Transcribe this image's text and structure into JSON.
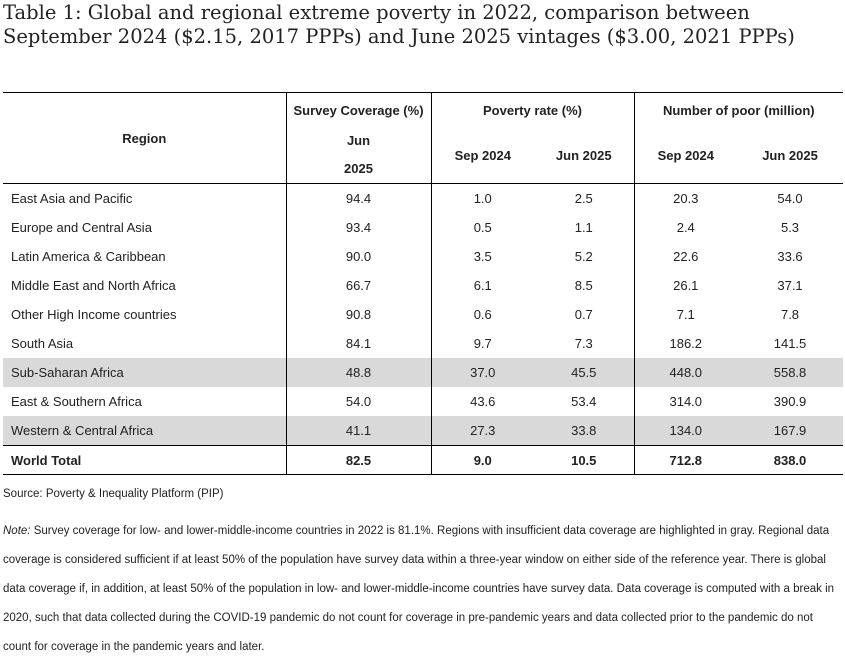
{
  "title": "Table 1: Global and regional extreme poverty in 2022, comparison between September 2024 ($2.15, 2017 PPPs) and June 2025 vintages ($3.00, 2021 PPPs)",
  "header": {
    "region": "Region",
    "survey_coverage": "Survey Coverage (%)",
    "survey_sub_line1": "Jun",
    "survey_sub_line2": "2025",
    "poverty_rate": "Poverty rate (%)",
    "number_of_poor": "Number of poor (million)",
    "sep_2024": "Sep 2024",
    "jun_2025": "Jun 2025"
  },
  "rows": [
    {
      "region": "East Asia and Pacific",
      "coverage": "94.4",
      "rate_sep": "1.0",
      "rate_jun": "2.5",
      "poor_sep": "20.3",
      "poor_jun": "54.0"
    },
    {
      "region": "Europe and Central Asia",
      "coverage": "93.4",
      "rate_sep": "0.5",
      "rate_jun": "1.1",
      "poor_sep": "2.4",
      "poor_jun": "5.3"
    },
    {
      "region": "Latin America & Caribbean",
      "coverage": "90.0",
      "rate_sep": "3.5",
      "rate_jun": "5.2",
      "poor_sep": "22.6",
      "poor_jun": "33.6"
    },
    {
      "region": "Middle East and North Africa",
      "coverage": "66.7",
      "rate_sep": "6.1",
      "rate_jun": "8.5",
      "poor_sep": "26.1",
      "poor_jun": "37.1"
    },
    {
      "region": "Other High Income countries",
      "coverage": "90.8",
      "rate_sep": "0.6",
      "rate_jun": "0.7",
      "poor_sep": "7.1",
      "poor_jun": "7.8"
    },
    {
      "region": "South Asia",
      "coverage": "84.1",
      "rate_sep": "9.7",
      "rate_jun": "7.3",
      "poor_sep": "186.2",
      "poor_jun": "141.5"
    },
    {
      "region": "Sub-Saharan Africa",
      "coverage": "48.8",
      "rate_sep": "37.0",
      "rate_jun": "45.5",
      "poor_sep": "448.0",
      "poor_jun": "558.8"
    },
    {
      "region": "East & Southern Africa",
      "coverage": "54.0",
      "rate_sep": "43.6",
      "rate_jun": "53.4",
      "poor_sep": "314.0",
      "poor_jun": "390.9"
    },
    {
      "region": "Western & Central Africa",
      "coverage": "41.1",
      "rate_sep": "27.3",
      "rate_jun": "33.8",
      "poor_sep": "134.0",
      "poor_jun": "167.9"
    }
  ],
  "total": {
    "region": "World Total",
    "coverage": "82.5",
    "rate_sep": "9.0",
    "rate_jun": "10.5",
    "poor_sep": "712.8",
    "poor_jun": "838.0"
  },
  "highlight_color": "#d9d9d9",
  "source": "Source: Poverty & Inequality Platform (PIP)",
  "note_label": "Note:",
  "note_text": " Survey coverage for low- and lower-middle-income countries in 2022 is 81.1%. Regions with insufficient data coverage are highlighted in gray. Regional data coverage is considered sufficient if at least 50% of the population have survey data within a three-year window on either side of the reference year. There is global data coverage if, in addition, at least 50% of the population in low- and lower-middle-income countries have survey data. Data coverage is computed with a break in 2020, such that data collected during the COVID-19 pandemic do not count for coverage in pre-pandemic years and data collected prior to the pandemic do not count for coverage in the pandemic years and later."
}
